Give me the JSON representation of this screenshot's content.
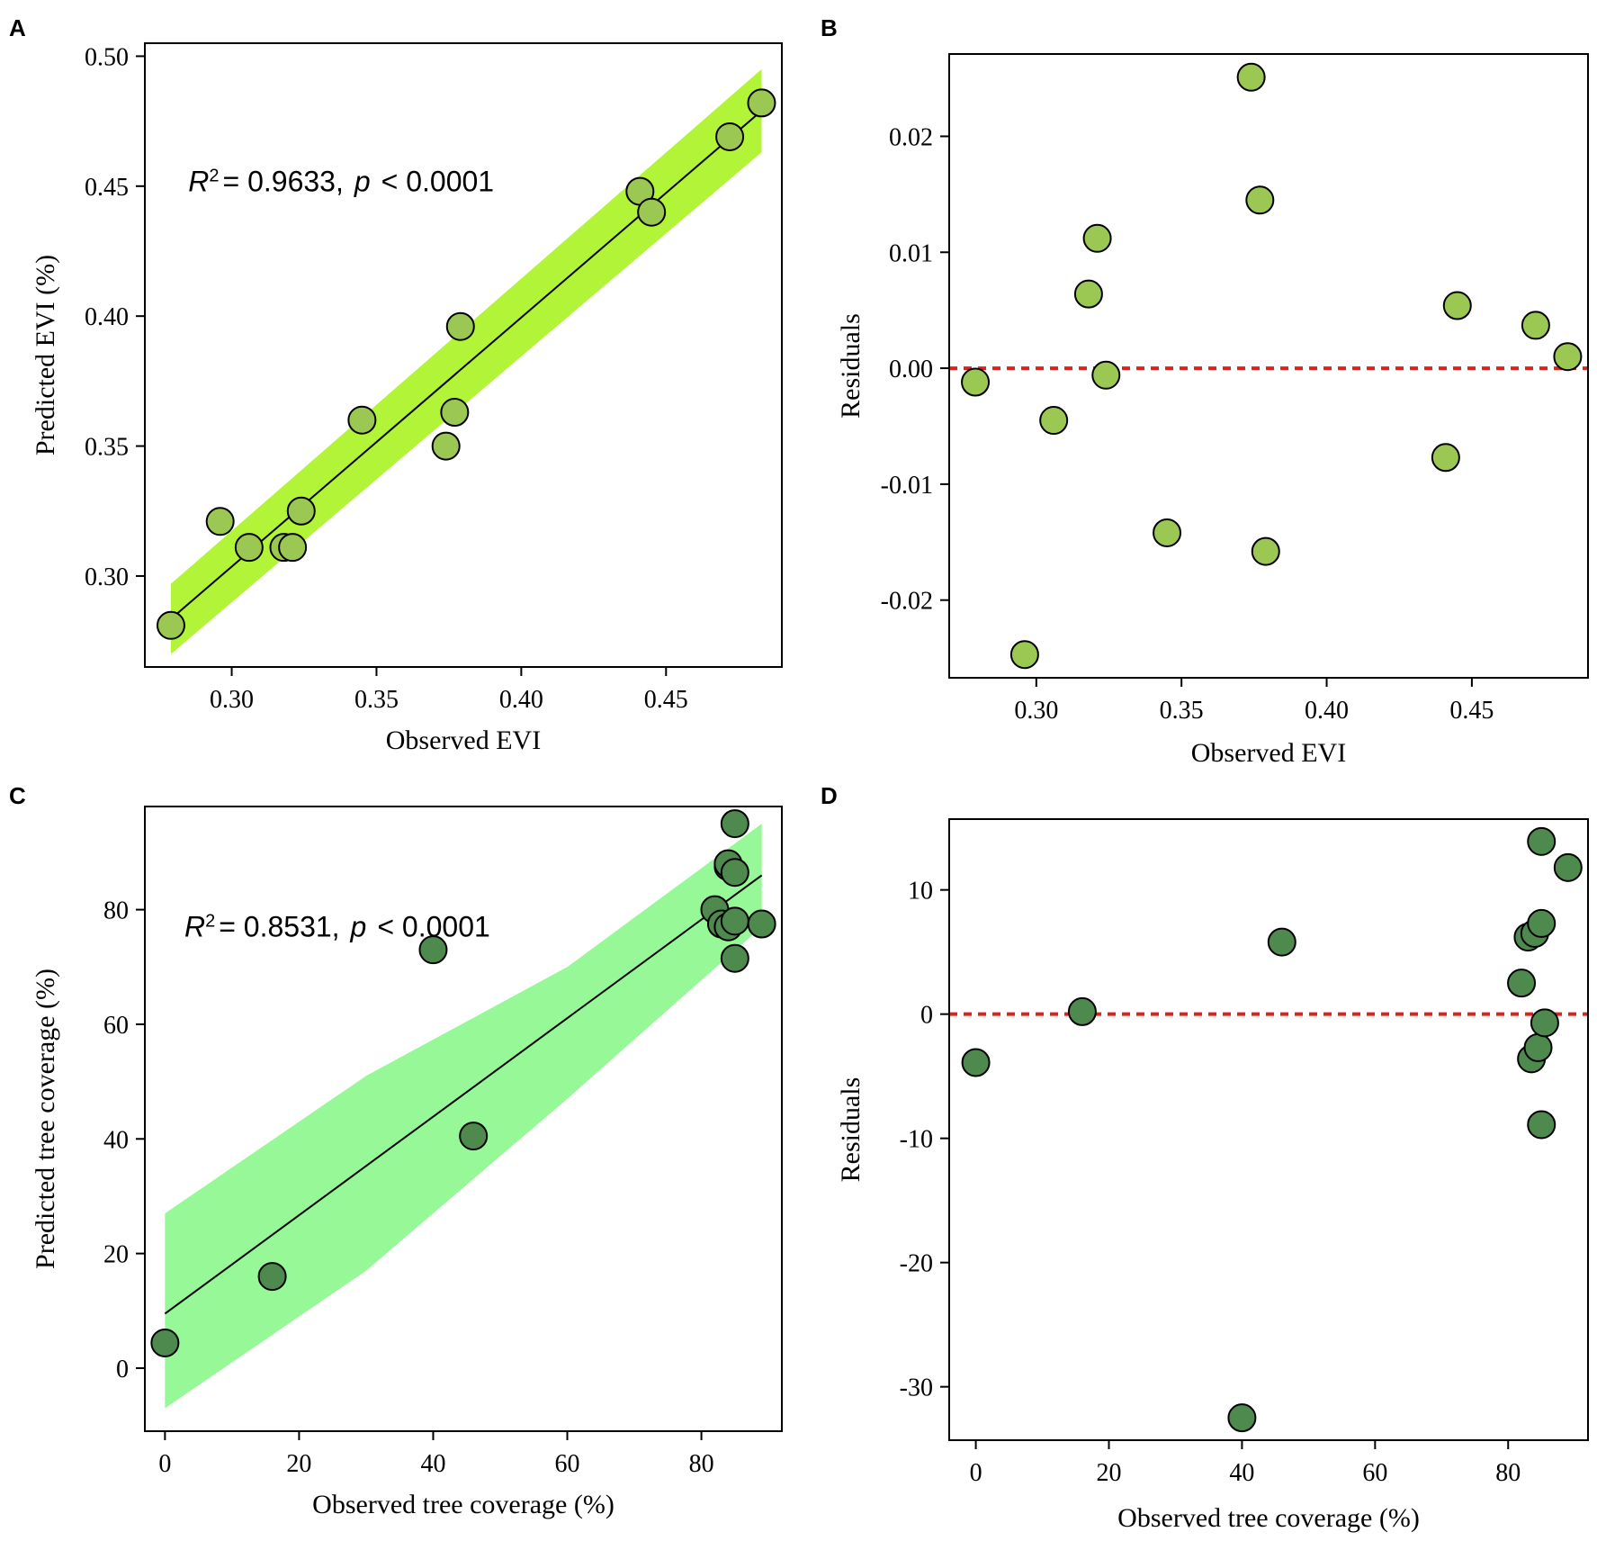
{
  "figure": {
    "colors": {
      "evi_point": "#9BC853",
      "evi_band": "#B2F538",
      "tree_point": "#4E8A4E",
      "tree_band": "#96F896",
      "fit_line": "#000000",
      "zero_line": "#E0201B"
    }
  },
  "chart_data": [
    {
      "id": "A",
      "panel_label": "A",
      "type": "scatter",
      "xlabel": "Observed EVI",
      "ylabel": "Predicted EVI (%)",
      "xlim": [
        0.27,
        0.49
      ],
      "ylim": [
        0.265,
        0.505
      ],
      "xticks": [
        0.3,
        0.35,
        0.4,
        0.45
      ],
      "xtick_labels": [
        "0.30",
        "0.35",
        "0.40",
        "0.45"
      ],
      "yticks": [
        0.3,
        0.35,
        0.4,
        0.45,
        0.5
      ],
      "ytick_labels": [
        "0.30",
        "0.35",
        "0.40",
        "0.45",
        "0.50"
      ],
      "annotation": {
        "r_symbol": "R",
        "r_exp": "2",
        "r_value": "= 0.9633,",
        "p_symbol": "p",
        "p_value": "< 0.0001"
      },
      "annotation_anchor": [
        0.285,
        0.448
      ],
      "fit_line": {
        "x": [
          0.279,
          0.483
        ],
        "y": [
          0.2835,
          0.479
        ]
      },
      "confidence_band": {
        "x": [
          0.279,
          0.483
        ],
        "upper": [
          0.297,
          0.495
        ],
        "lower": [
          0.27,
          0.463
        ]
      },
      "points": {
        "x": [
          0.279,
          0.296,
          0.306,
          0.318,
          0.321,
          0.324,
          0.345,
          0.374,
          0.377,
          0.379,
          0.441,
          0.445,
          0.472,
          0.483
        ],
        "y": [
          0.281,
          0.321,
          0.311,
          0.311,
          0.311,
          0.325,
          0.36,
          0.35,
          0.363,
          0.396,
          0.448,
          0.44,
          0.469,
          0.482
        ]
      }
    },
    {
      "id": "B",
      "panel_label": "B",
      "type": "scatter",
      "xlabel": "Observed EVI",
      "ylabel": "Residuals",
      "xlim": [
        0.27,
        0.49
      ],
      "ylim": [
        -0.0267,
        0.0271
      ],
      "xticks": [
        0.3,
        0.35,
        0.4,
        0.45
      ],
      "xtick_labels": [
        "0.30",
        "0.35",
        "0.40",
        "0.45"
      ],
      "yticks": [
        -0.02,
        -0.01,
        0.0,
        0.01,
        0.02
      ],
      "ytick_labels": [
        "-0.02",
        "-0.01",
        "0.00",
        "0.01",
        "0.02"
      ],
      "reference_line": 0,
      "points": {
        "x": [
          0.279,
          0.296,
          0.306,
          0.318,
          0.321,
          0.324,
          0.345,
          0.374,
          0.377,
          0.379,
          0.441,
          0.445,
          0.472,
          0.483
        ],
        "y": [
          -0.0012,
          -0.0247,
          -0.0045,
          0.0064,
          0.0112,
          -0.0006,
          -0.0142,
          0.0251,
          0.0145,
          -0.0158,
          -0.0077,
          0.0054,
          0.0037,
          0.001
        ]
      }
    },
    {
      "id": "C",
      "panel_label": "C",
      "type": "scatter",
      "xlabel": "Observed tree coverage (%)",
      "ylabel": "Predicted tree coverage (%)",
      "xlim": [
        -3,
        92
      ],
      "ylim": [
        -11,
        98
      ],
      "xticks": [
        0,
        20,
        40,
        60,
        80
      ],
      "xtick_labels": [
        "0",
        "20",
        "40",
        "60",
        "80"
      ],
      "yticks": [
        0,
        20,
        40,
        60,
        80
      ],
      "ytick_labels": [
        "0",
        "20",
        "40",
        "60",
        "80"
      ],
      "annotation": {
        "r_symbol": "R",
        "r_exp": "2",
        "r_value": "= 0.8531,",
        "p_symbol": "p",
        "p_value": "< 0.0001"
      },
      "annotation_anchor": [
        2.9,
        75.3
      ],
      "fit_line": {
        "x": [
          0,
          89
        ],
        "y": [
          9.5,
          86
        ]
      },
      "confidence_band": {
        "x": [
          0,
          30,
          60,
          89
        ],
        "upper": [
          27,
          51,
          70,
          95
        ],
        "lower": [
          -7,
          17,
          47,
          77
        ]
      },
      "points": {
        "x": [
          0,
          16,
          40,
          46,
          82,
          83,
          84,
          84,
          84,
          85,
          85,
          85,
          85,
          89
        ],
        "y": [
          4.4,
          16,
          73,
          40.5,
          80,
          77.5,
          77,
          87.5,
          88,
          95,
          86.5,
          71.5,
          78,
          77.5
        ]
      }
    },
    {
      "id": "D",
      "panel_label": "D",
      "type": "scatter",
      "xlabel": "Observed tree coverage (%)",
      "ylabel": "Residuals",
      "xlim": [
        -4,
        92
      ],
      "ylim": [
        -34.3,
        15.7
      ],
      "xticks": [
        0,
        20,
        40,
        60,
        80
      ],
      "xtick_labels": [
        "0",
        "20",
        "40",
        "60",
        "80"
      ],
      "yticks": [
        -30,
        -20,
        -10,
        0,
        10
      ],
      "ytick_labels": [
        "-30",
        "-20",
        "-10",
        "0",
        "10"
      ],
      "reference_line": 0,
      "points": {
        "x": [
          0,
          16,
          40,
          46,
          82,
          83,
          83.5,
          84,
          84.5,
          85,
          85,
          85,
          85.5,
          89
        ],
        "y": [
          -3.9,
          0.2,
          -32.5,
          5.8,
          2.5,
          6.2,
          -3.6,
          6.5,
          -2.7,
          13.9,
          7.3,
          -8.9,
          -0.7,
          11.8
        ]
      }
    }
  ]
}
